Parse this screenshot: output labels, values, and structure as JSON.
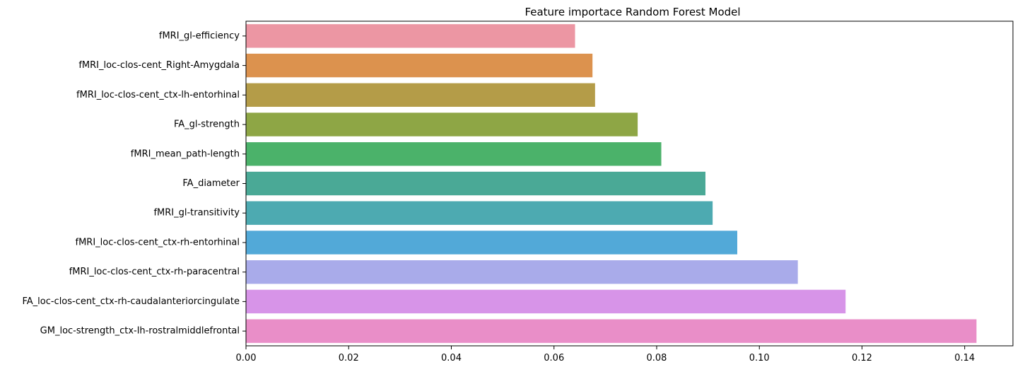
{
  "chart_data": {
    "type": "bar",
    "orientation": "horizontal",
    "title": "Feature importace Random Forest Model",
    "xlabel": "",
    "ylabel": "",
    "xlim": [
      0,
      0.1494
    ],
    "xticks": [
      0.0,
      0.02,
      0.04,
      0.06,
      0.08,
      0.1,
      0.12,
      0.14
    ],
    "xtick_labels": [
      "0.00",
      "0.02",
      "0.04",
      "0.06",
      "0.08",
      "0.10",
      "0.12",
      "0.14"
    ],
    "grid": false,
    "legend": "none",
    "categories": [
      "fMRI_gl-efficiency",
      "fMRI_loc-clos-cent_Right-Amygdala",
      "fMRI_loc-clos-cent_ctx-lh-entorhinal",
      "FA_gl-strength",
      "fMRI_mean_path-length",
      "FA_diameter",
      "fMRI_gl-transitivity",
      "fMRI_loc-clos-cent_ctx-rh-entorhinal",
      "fMRI_loc-clos-cent_ctx-rh-paracentral",
      "FA_loc-clos-cent_ctx-rh-caudalanteriorcingulate",
      "GM_loc-strength_ctx-lh-rostralmiddlefrontal"
    ],
    "values": [
      0.0641,
      0.0675,
      0.068,
      0.0763,
      0.0809,
      0.0895,
      0.0909,
      0.0957,
      0.1075,
      0.1168,
      0.1423
    ],
    "colors": [
      "#ec96a3",
      "#dc924e",
      "#b49c48",
      "#8ea645",
      "#4bb26a",
      "#4aa996",
      "#4daab1",
      "#52a9d8",
      "#a9abea",
      "#d794e8",
      "#e98ec8"
    ]
  }
}
